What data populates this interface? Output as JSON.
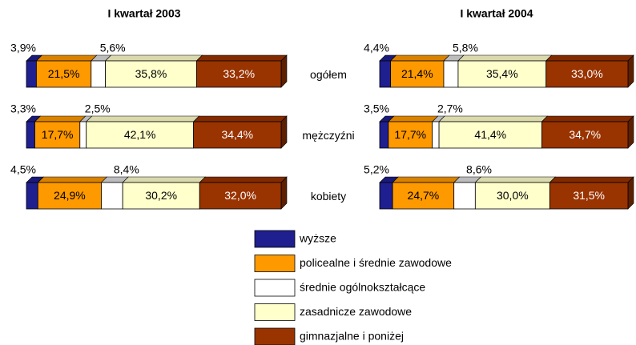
{
  "chart_data": [
    {
      "type": "bar",
      "orientation": "horizontal",
      "stacked": true,
      "title": "I kwartał 2003",
      "categories": [
        "ogółem",
        "mężczyźni",
        "kobiety"
      ],
      "series": [
        {
          "name": "wyższe",
          "color": "#1f1f8f",
          "values": [
            3.9,
            3.3,
            4.5
          ],
          "value_labels": [
            "3,9%",
            "3,3%",
            "4,5%"
          ]
        },
        {
          "name": "policealne i średnie zawodowe",
          "color": "#ff9900",
          "values": [
            21.5,
            17.7,
            24.9
          ],
          "value_labels": [
            "21,5%",
            "17,7%",
            "24,9%"
          ]
        },
        {
          "name": "średnie ogólnokształcące",
          "color": "#ffffff",
          "values": [
            5.6,
            2.5,
            8.4
          ],
          "value_labels": [
            "5,6%",
            "2,5%",
            "8,4%"
          ]
        },
        {
          "name": "zasadnicze zawodowe",
          "color": "#ffffcc",
          "values": [
            35.8,
            42.1,
            30.2
          ],
          "value_labels": [
            "35,8%",
            "42,1%",
            "30,2%"
          ]
        },
        {
          "name": "gimnazjalne i poniżej",
          "color": "#993300",
          "values": [
            33.2,
            34.4,
            32.0
          ],
          "value_labels": [
            "33,2%",
            "34,4%",
            "32,0%"
          ]
        }
      ]
    },
    {
      "type": "bar",
      "orientation": "horizontal",
      "stacked": true,
      "title": "I kwartał 2004",
      "series": [
        {
          "color": "#1f1f8f",
          "values": [
            4.4,
            3.5,
            5.2
          ],
          "value_labels": [
            "4,4%",
            "3,5%",
            "5,2%"
          ]
        },
        {
          "color": "#ff9900",
          "values": [
            21.4,
            17.7,
            24.7
          ],
          "value_labels": [
            "21,4%",
            "17,7%",
            "24,7%"
          ]
        },
        {
          "color": "#ffffff",
          "values": [
            5.8,
            2.7,
            8.6
          ],
          "value_labels": [
            "5,8%",
            "2,7%",
            "8,6%"
          ]
        },
        {
          "color": "#ffffcc",
          "values": [
            35.4,
            41.4,
            30.0
          ],
          "value_labels": [
            "35,4%",
            "41,4%",
            "30,0%"
          ]
        },
        {
          "color": "#993300",
          "values": [
            33.0,
            34.7,
            31.5
          ],
          "value_labels": [
            "33,0%",
            "34,7%",
            "31,5%"
          ]
        }
      ]
    }
  ]
}
